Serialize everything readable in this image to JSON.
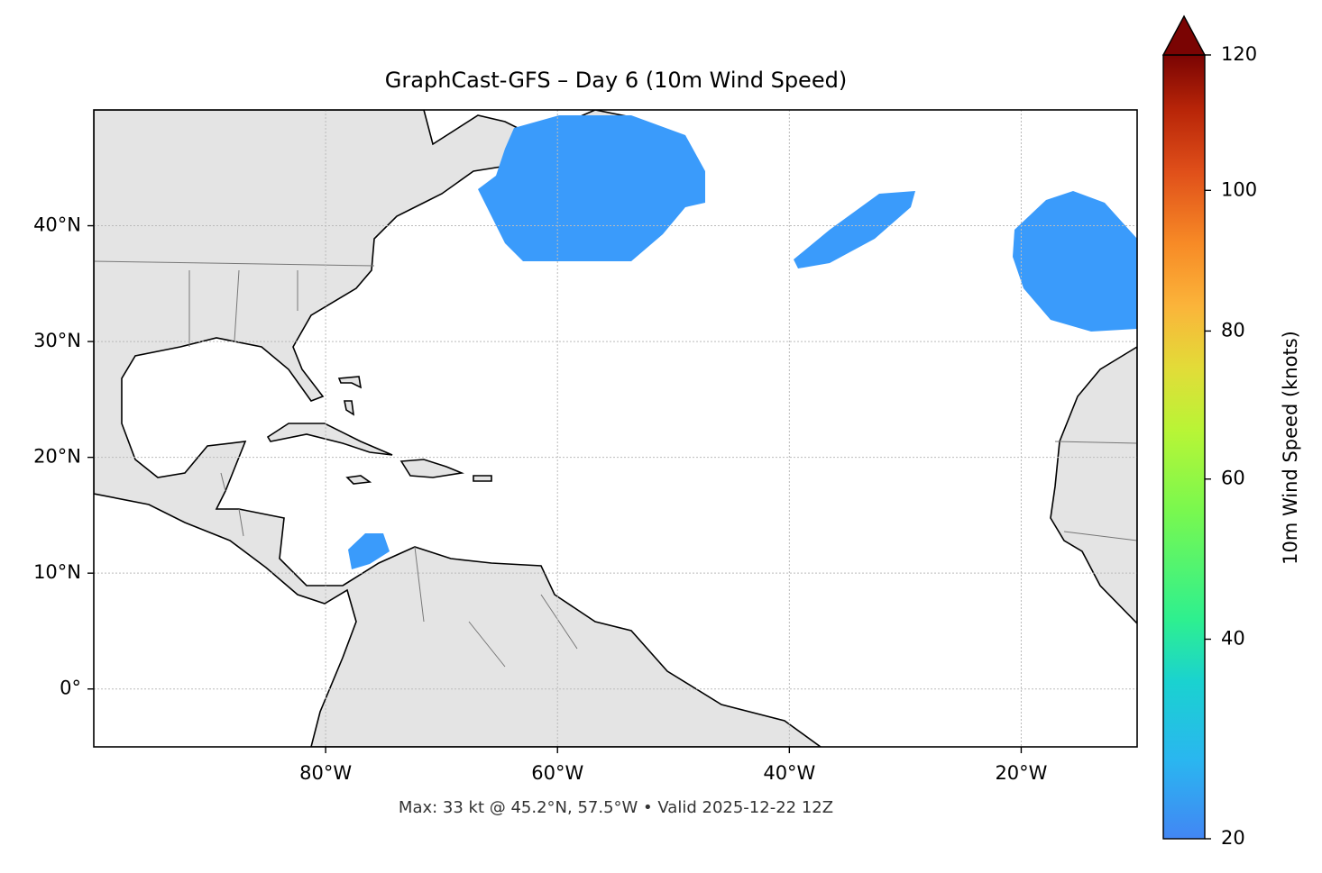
{
  "chart_data": {
    "type": "map",
    "title": "GraphCast-GFS – Day 6 (10m Wind Speed)",
    "annotation": "Max: 33 kt @ 45.2°N, 57.5°W • Valid 2025-12-22 12Z",
    "xlim": [
      -100,
      -10
    ],
    "ylim": [
      -5,
      50
    ],
    "xticks": [
      {
        "value": -80,
        "label": "80°W"
      },
      {
        "value": -60,
        "label": "60°W"
      },
      {
        "value": -40,
        "label": "40°W"
      },
      {
        "value": -20,
        "label": "20°W"
      }
    ],
    "yticks": [
      {
        "value": 0,
        "label": "0°"
      },
      {
        "value": 10,
        "label": "10°N"
      },
      {
        "value": 20,
        "label": "20°N"
      },
      {
        "value": 30,
        "label": "30°N"
      },
      {
        "value": 40,
        "label": "40°N"
      }
    ],
    "grid": true,
    "colorbar": {
      "label": "10m Wind Speed (knots)",
      "lim": [
        20,
        120
      ],
      "ticks": [
        20,
        40,
        60,
        80,
        100,
        120
      ]
    }
  }
}
